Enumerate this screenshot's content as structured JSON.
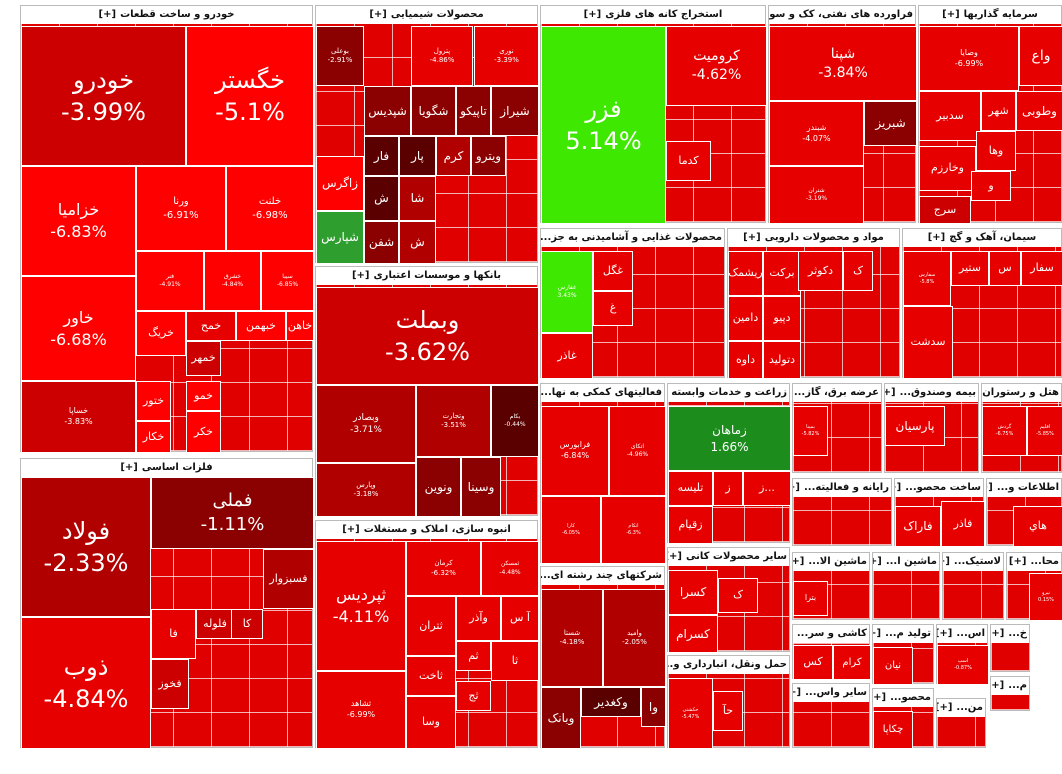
{
  "sectors": [
    {
      "title": "خودرو و ساخت قطعات",
      "toggle": "[+]",
      "tiles": [
        {
          "name": "خودرو",
          "change": "-3.99%"
        },
        {
          "name": "خگستر",
          "change": "-5.1%"
        },
        {
          "name": "خزامیا",
          "change": "-6.83%"
        },
        {
          "name": "ورنا",
          "change": "-6.91%"
        },
        {
          "name": "خلنت",
          "change": "-6.98%"
        },
        {
          "name": "خاور",
          "change": "-6.68%"
        },
        {
          "name": "خساپا",
          "change": "-3.83%"
        },
        {
          "name": "فنر",
          "change": "-4.91%"
        },
        {
          "name": "خشرق",
          "change": "-4.84%"
        },
        {
          "name": "سیبا",
          "change": "-6.85%"
        },
        {
          "name": "خریگ"
        },
        {
          "name": "خمح"
        },
        {
          "name": "خبهمن"
        },
        {
          "name": "خاهن"
        },
        {
          "name": "ختور"
        },
        {
          "name": "خمهر"
        },
        {
          "name": "خمو"
        },
        {
          "name": "خکار"
        },
        {
          "name": "خکر"
        }
      ]
    },
    {
      "title": "فلزات اساسی",
      "toggle": "[+]",
      "tiles": [
        {
          "name": "فولاد",
          "change": "-2.33%"
        },
        {
          "name": "ذوب",
          "change": "-4.84%"
        },
        {
          "name": "فملی",
          "change": "-1.11%"
        },
        {
          "name": "فسبزوار"
        },
        {
          "name": "فخوز"
        },
        {
          "name": "فلوله"
        },
        {
          "name": "فا"
        },
        {
          "name": "کا"
        }
      ]
    },
    {
      "title": "محصولات شیمیایی",
      "toggle": "[+]",
      "tiles": [
        {
          "name": "بوعلی",
          "change": "-2.91%"
        },
        {
          "name": "پترول",
          "change": "-4.86%"
        },
        {
          "name": "نوری",
          "change": "-3.39%"
        },
        {
          "name": "شیراز"
        },
        {
          "name": "تاپیکو"
        },
        {
          "name": "شگویا"
        },
        {
          "name": "شپدیس"
        },
        {
          "name": "ویترو"
        },
        {
          "name": "کرم"
        },
        {
          "name": "پار"
        },
        {
          "name": "فار"
        },
        {
          "name": "زاگرس"
        },
        {
          "name": "شپارس"
        },
        {
          "name": "شا"
        },
        {
          "name": "ش"
        },
        {
          "name": "شفن"
        },
        {
          "name": "ش"
        }
      ]
    },
    {
      "title": "بانکها و موسسات اعتباری",
      "toggle": "[+]",
      "tiles": [
        {
          "name": "وبملت",
          "change": "-3.62%"
        },
        {
          "name": "وبصادر",
          "change": "-3.71%"
        },
        {
          "name": "وتجارت",
          "change": "-3.51%"
        },
        {
          "name": "بکام",
          "change": "-0.44%"
        },
        {
          "name": "وپارس",
          "change": "-3.18%"
        },
        {
          "name": "ونوین"
        },
        {
          "name": "وسینا"
        }
      ]
    },
    {
      "title": "انبوه سازی، املاک و مستغلات",
      "toggle": "[+]",
      "tiles": [
        {
          "name": "ثپردیس",
          "change": "-4.11%"
        },
        {
          "name": "کرمان",
          "change": "-6.32%"
        },
        {
          "name": "ثمسکن",
          "change": "-4.48%"
        },
        {
          "name": "آ س"
        },
        {
          "name": "وآذر"
        },
        {
          "name": "ثتران"
        },
        {
          "name": "ثاخت"
        },
        {
          "name": "ثشاهد",
          "change": "-6.99%"
        },
        {
          "name": "وسا"
        },
        {
          "name": "ثم"
        },
        {
          "name": "ثا"
        },
        {
          "name": "ثج"
        }
      ]
    },
    {
      "title": "استخراج کانه های فلزی",
      "toggle": "[+]",
      "tiles": [
        {
          "name": "فزر",
          "change": "5.14%"
        },
        {
          "name": "کرومیت",
          "change": "-4.62%"
        },
        {
          "name": "کدما"
        }
      ]
    },
    {
      "title": "فراورده های نفتی، کک و سو...",
      "toggle": "[+]",
      "tiles": [
        {
          "name": "شپنا",
          "change": "-3.84%"
        },
        {
          "name": "شبندر",
          "change": "-4.07%"
        },
        {
          "name": "شبریز"
        },
        {
          "name": "شتران",
          "change": "-3.19%"
        }
      ]
    },
    {
      "title": "سرمایه گذاریها",
      "toggle": "[+]",
      "tiles": [
        {
          "name": "وصایا",
          "change": "-6.99%"
        },
        {
          "name": "واع"
        },
        {
          "name": "وطوبی"
        },
        {
          "name": "شهر"
        },
        {
          "name": "سدبیر"
        },
        {
          "name": "وها"
        },
        {
          "name": "وخارزم"
        },
        {
          "name": "و"
        },
        {
          "name": "سرج"
        }
      ]
    },
    {
      "title": "محصولات غذایی و آشامیدنی به جز...",
      "toggle": "[+]",
      "tiles": [
        {
          "name": "غفارس",
          "change": "3.43%"
        },
        {
          "name": "غگل"
        },
        {
          "name": "غ"
        },
        {
          "name": "غاذر"
        }
      ]
    },
    {
      "title": "مواد و محصولات دارویی",
      "toggle": "[+]",
      "tiles": [
        {
          "name": "ریشمک"
        },
        {
          "name": "برکت"
        },
        {
          "name": "دکوثر"
        },
        {
          "name": "ک"
        },
        {
          "name": "دامین"
        },
        {
          "name": "دپیو"
        },
        {
          "name": "داوه"
        },
        {
          "name": "دتولید"
        }
      ]
    },
    {
      "title": "سیمان، آهک و گچ",
      "toggle": "[+]",
      "tiles": [
        {
          "name": "سفار"
        },
        {
          "name": "س"
        },
        {
          "name": "ستیر"
        },
        {
          "name": "سفارس",
          "change": "-5.8%"
        },
        {
          "name": "سدشت"
        }
      ]
    },
    {
      "title": "فعالیتهای کمکی به نها...",
      "toggle": "[+]",
      "tiles": [
        {
          "name": "فرابورس",
          "change": "-6.84%"
        },
        {
          "name": "اتکای",
          "change": "-4.96%"
        },
        {
          "name": "کارا",
          "change": "-6.05%"
        },
        {
          "name": "اتکام",
          "change": "-6.3%"
        }
      ]
    },
    {
      "title": "زراعت و خدمات وابسته",
      "toggle": "[+]",
      "tiles": [
        {
          "name": "زماهان",
          "change": "1.66%"
        },
        {
          "name": "تلیسه"
        },
        {
          "name": "زقیام"
        },
        {
          "name": "ز"
        },
        {
          "name": "ز..."
        }
      ]
    },
    {
      "title": "عرضه برق، گاز...",
      "toggle": "[+]",
      "tiles": [
        {
          "name": "بمپنا",
          "change": "-5.82%"
        }
      ]
    },
    {
      "title": "بیمه وصندوق...",
      "toggle": "[+]",
      "tiles": [
        {
          "name": "پارسیان"
        }
      ]
    },
    {
      "title": "هتل و رستوران",
      "toggle": "[+]",
      "tiles": [
        {
          "name": "گردش",
          "change": "-6.75%"
        },
        {
          "name": "اقلیم",
          "change": "-5.85%"
        }
      ]
    },
    {
      "title": "شرکتهای چند رشته ای...",
      "toggle": "[+]",
      "tiles": [
        {
          "name": "شستا",
          "change": "-4.18%"
        },
        {
          "name": "وامید",
          "change": "-2.05%"
        },
        {
          "name": "وکغدیر"
        },
        {
          "name": "وبانک"
        },
        {
          "name": "وا"
        }
      ]
    },
    {
      "title": "سایر محصولات کانی",
      "toggle": "[+]",
      "tiles": [
        {
          "name": "کسرا"
        },
        {
          "name": "کسرام"
        },
        {
          "name": "ک"
        }
      ]
    },
    {
      "title": "حمل ونقل، انبارداری و...",
      "toggle": "[+]",
      "tiles": [
        {
          "name": "حکشتی",
          "change": "-5.47%"
        },
        {
          "name": "حآ"
        }
      ]
    },
    {
      "title": "رایانه و فعالیته...",
      "toggle": "[+]",
      "tiles": []
    },
    {
      "title": "ساخت محصو...",
      "toggle": "[+]",
      "tiles": [
        {
          "name": "فاراک"
        },
        {
          "name": "فاذر"
        }
      ]
    },
    {
      "title": "اطلاعات و...",
      "toggle": "[+]",
      "tiles": [
        {
          "name": "هاي"
        }
      ]
    },
    {
      "title": "ماشین الا...",
      "toggle": "[+]",
      "tiles": [
        {
          "name": "بترا"
        }
      ]
    },
    {
      "title": "ماشین ا...",
      "toggle": "[+]",
      "tiles": []
    },
    {
      "title": "لاستیک...",
      "toggle": "[+]",
      "tiles": []
    },
    {
      "title": "محا...",
      "toggle": "[+]",
      "tiles": [
        {
          "name": "نیرو",
          "change": "0.15%"
        }
      ]
    },
    {
      "title": "کاشی و سر...",
      "toggle": "[+]",
      "tiles": [
        {
          "name": "کس"
        },
        {
          "name": "کرام"
        }
      ]
    },
    {
      "title": "تولید م...",
      "toggle": "[+]",
      "tiles": [
        {
          "name": "نیان"
        }
      ]
    },
    {
      "title": "اس...",
      "toggle": "[+]",
      "tiles": [
        {
          "name": "اسپ",
          "change": "-0.87%"
        }
      ]
    },
    {
      "title": "خ...",
      "toggle": "[+]",
      "tiles": []
    },
    {
      "title": "سایر واس...",
      "toggle": "[+]",
      "tiles": []
    },
    {
      "title": "محصو...",
      "toggle": "[+]",
      "tiles": [
        {
          "name": "چکاپا"
        }
      ]
    },
    {
      "title": "من...",
      "toggle": "[+]",
      "tiles": []
    },
    {
      "title": "م...",
      "toggle": "[+]",
      "tiles": []
    }
  ]
}
